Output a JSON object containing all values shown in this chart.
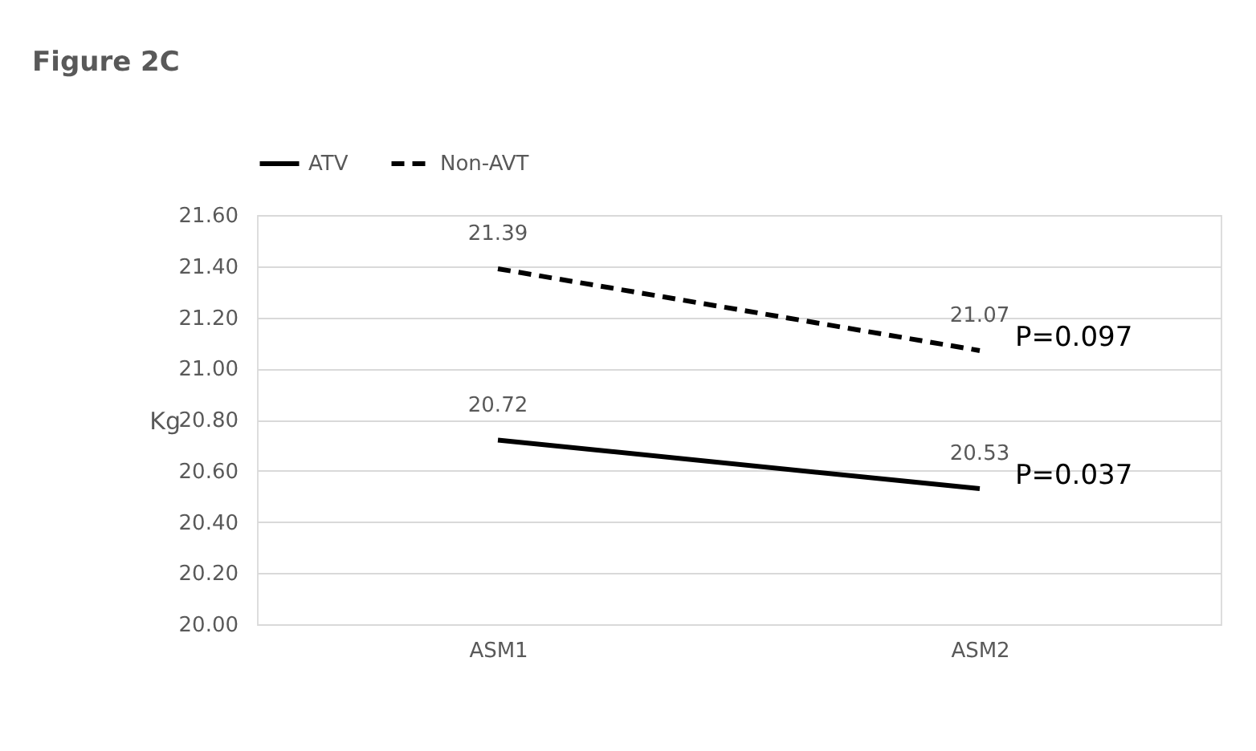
{
  "chart_data": {
    "type": "line",
    "title": "Figure 2C",
    "ylabel": "Kg",
    "categories": [
      "ASM1",
      "ASM2"
    ],
    "series": [
      {
        "name": "ATV",
        "color": "#000000",
        "line_style": "solid",
        "values": [
          20.72,
          20.53
        ]
      },
      {
        "name": "Non-AVT",
        "color": "#000000",
        "line_style": "dashed",
        "values": [
          21.39,
          21.07
        ]
      }
    ],
    "ylim": [
      20.0,
      21.6
    ],
    "yticks": [
      {
        "value": 20.0,
        "label": "20.00"
      },
      {
        "value": 20.2,
        "label": "20.20"
      },
      {
        "value": 20.4,
        "label": "20.40"
      },
      {
        "value": 20.6,
        "label": "20.60"
      },
      {
        "value": 20.8,
        "label": "20.80"
      },
      {
        "value": 21.0,
        "label": "21.00"
      },
      {
        "value": 21.2,
        "label": "21.20"
      },
      {
        "value": 21.4,
        "label": "21.40"
      },
      {
        "value": 21.6,
        "label": "21.60"
      }
    ],
    "grid": "y",
    "legend": "top",
    "marker": "none",
    "data_labels": true,
    "annotations": [
      {
        "text": "P=0.097",
        "x": "ASM2",
        "y": 21.07
      },
      {
        "text": "P=0.037",
        "x": "ASM2",
        "y": 20.53
      }
    ]
  }
}
